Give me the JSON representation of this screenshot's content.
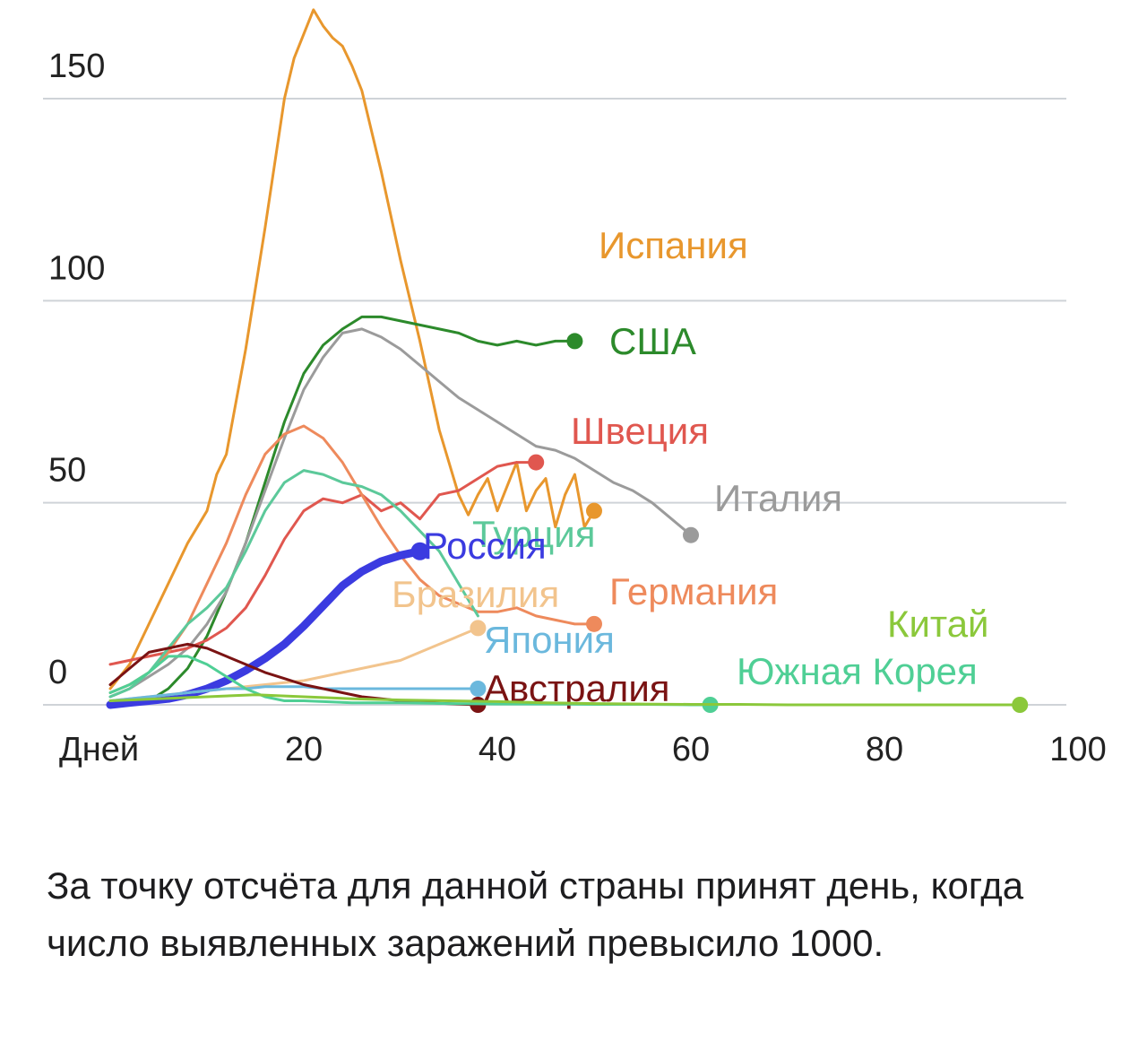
{
  "caption": "За точку отсчёта для данной страны принят день, когда число выявленных заражений превысило 1000.",
  "chart_data": {
    "type": "line",
    "title": "",
    "xlabel": "Дней",
    "ylabel": "",
    "xlim": [
      0,
      100
    ],
    "ylim": [
      0,
      170
    ],
    "x_ticks": [
      {
        "value": 0,
        "label": "Дней"
      },
      {
        "value": 20,
        "label": "20"
      },
      {
        "value": 40,
        "label": "40"
      },
      {
        "value": 60,
        "label": "60"
      },
      {
        "value": 80,
        "label": "80"
      },
      {
        "value": 100,
        "label": "100"
      }
    ],
    "y_ticks": [
      0,
      50,
      100,
      150
    ],
    "grid": "horizontal",
    "series": [
      {
        "name": "Испания",
        "color": "#e8972d",
        "width": 3,
        "x": [
          0,
          2,
          4,
          6,
          8,
          10,
          11,
          12,
          14,
          16,
          18,
          19,
          20,
          21,
          22,
          23,
          24,
          25,
          26,
          28,
          30,
          32,
          34,
          36,
          37,
          38,
          39,
          40,
          41,
          42,
          43,
          44,
          45,
          46,
          47,
          48,
          49,
          50
        ],
        "y": [
          4,
          10,
          20,
          30,
          40,
          48,
          57,
          62,
          88,
          118,
          150,
          160,
          166,
          172,
          168,
          165,
          163,
          158,
          152,
          132,
          110,
          90,
          68,
          52,
          47,
          52,
          56,
          48,
          54,
          60,
          48,
          53,
          56,
          44,
          52,
          57,
          44,
          48
        ],
        "dot": true
      },
      {
        "name": "США",
        "color": "#2c8a2b",
        "width": 3,
        "x": [
          0,
          2,
          4,
          6,
          8,
          10,
          12,
          14,
          16,
          18,
          20,
          22,
          24,
          26,
          28,
          30,
          32,
          34,
          36,
          38,
          40,
          42,
          44,
          46,
          48
        ],
        "y": [
          0,
          0,
          1,
          4,
          9,
          17,
          28,
          40,
          55,
          70,
          82,
          89,
          93,
          96,
          96,
          95,
          94,
          93,
          92,
          90,
          89,
          90,
          89,
          90,
          90
        ],
        "dot": true
      },
      {
        "name": "Италия",
        "color": "#9b9b9b",
        "width": 3,
        "x": [
          0,
          2,
          4,
          6,
          8,
          10,
          12,
          14,
          16,
          18,
          20,
          22,
          24,
          26,
          28,
          30,
          32,
          34,
          36,
          38,
          40,
          42,
          44,
          46,
          48,
          50,
          52,
          54,
          56,
          58,
          60
        ],
        "y": [
          2,
          4,
          7,
          10,
          14,
          20,
          28,
          40,
          53,
          66,
          78,
          86,
          92,
          93,
          91,
          88,
          84,
          80,
          76,
          73,
          70,
          67,
          64,
          63,
          61,
          58,
          55,
          53,
          50,
          46,
          42
        ],
        "dot": true
      },
      {
        "name": "Швеция",
        "color": "#e0574f",
        "width": 3,
        "x": [
          0,
          2,
          4,
          6,
          8,
          10,
          12,
          14,
          16,
          18,
          20,
          22,
          24,
          26,
          28,
          30,
          32,
          34,
          36,
          38,
          40,
          42,
          44
        ],
        "y": [
          10,
          11,
          12,
          13,
          14,
          16,
          19,
          24,
          32,
          41,
          48,
          51,
          50,
          52,
          48,
          50,
          46,
          52,
          53,
          56,
          59,
          60,
          60
        ],
        "dot": true
      },
      {
        "name": "Германия",
        "color": "#ee8a5c",
        "width": 3,
        "x": [
          0,
          2,
          4,
          6,
          8,
          10,
          12,
          14,
          16,
          18,
          20,
          22,
          24,
          26,
          28,
          30,
          32,
          34,
          36,
          38,
          40,
          42,
          44,
          46,
          48,
          50
        ],
        "y": [
          3,
          5,
          8,
          13,
          20,
          30,
          40,
          52,
          62,
          67,
          69,
          66,
          60,
          52,
          44,
          37,
          31,
          27,
          25,
          23,
          23,
          24,
          22,
          21,
          20,
          20
        ],
        "dot": true
      },
      {
        "name": "Турция",
        "color": "#5cc99a",
        "width": 3,
        "x": [
          0,
          2,
          4,
          6,
          8,
          10,
          12,
          14,
          16,
          18,
          20,
          22,
          24,
          26,
          28,
          30,
          32,
          34,
          36,
          38
        ],
        "y": [
          2,
          4,
          8,
          14,
          20,
          24,
          29,
          38,
          48,
          55,
          58,
          57,
          55,
          54,
          52,
          48,
          43,
          38,
          30,
          22
        ],
        "dot": false
      },
      {
        "name": "Россия",
        "color": "#3b3be0",
        "width": 9,
        "x": [
          0,
          2,
          4,
          6,
          8,
          10,
          12,
          14,
          16,
          18,
          20,
          22,
          24,
          26,
          28,
          30,
          32
        ],
        "y": [
          0,
          0.5,
          1,
          1.5,
          2.5,
          4,
          6,
          8.5,
          11.5,
          15,
          19.5,
          24.5,
          29.5,
          33,
          35.5,
          37,
          38
        ],
        "dot": true
      },
      {
        "name": "Бразилия",
        "color": "#f2c48d",
        "width": 3,
        "x": [
          0,
          2,
          4,
          6,
          8,
          10,
          12,
          14,
          16,
          18,
          20,
          22,
          24,
          26,
          28,
          30,
          32,
          34,
          36,
          38
        ],
        "y": [
          1,
          1.5,
          2,
          2.5,
          3,
          3.5,
          4,
          4.5,
          5,
          5.5,
          6,
          7,
          8,
          9,
          10,
          11,
          13,
          15,
          17,
          19
        ],
        "dot": true
      },
      {
        "name": "Япония",
        "color": "#6bb8dd",
        "width": 3,
        "x": [
          0,
          2,
          4,
          6,
          8,
          10,
          12,
          14,
          16,
          18,
          20,
          22,
          24,
          26,
          28,
          30,
          32,
          34,
          36,
          38
        ],
        "y": [
          1,
          1.5,
          2,
          2.5,
          3,
          3.5,
          4,
          4,
          4.5,
          4.5,
          4.5,
          4,
          4,
          4,
          4,
          4,
          4,
          4,
          4,
          4
        ],
        "dot": true
      },
      {
        "name": "Австралия",
        "color": "#7a1313",
        "width": 3,
        "x": [
          0,
          2,
          4,
          6,
          8,
          10,
          12,
          14,
          16,
          18,
          20,
          22,
          24,
          26,
          28,
          30,
          32,
          34,
          36,
          38
        ],
        "y": [
          5,
          9,
          13,
          14,
          15,
          14,
          12,
          10,
          8,
          6.5,
          5,
          4,
          3,
          2,
          1.5,
          1,
          0.6,
          0.4,
          0.2,
          0
        ],
        "dot": true
      },
      {
        "name": "Южная Корея",
        "color": "#4fcf95",
        "width": 3,
        "x": [
          0,
          2,
          4,
          6,
          8,
          10,
          12,
          14,
          16,
          18,
          20,
          25,
          30,
          35,
          40,
          45,
          50,
          55,
          60,
          62
        ],
        "y": [
          3,
          5,
          8,
          12,
          12,
          10,
          7,
          4,
          2,
          1,
          1,
          0.5,
          0.5,
          0.3,
          0.2,
          0.2,
          0.1,
          0.1,
          0,
          0
        ],
        "dot": true
      },
      {
        "name": "Китай",
        "color": "#8bc83b",
        "width": 3,
        "x": [
          0,
          5,
          10,
          15,
          20,
          25,
          30,
          35,
          40,
          45,
          50,
          55,
          60,
          65,
          70,
          75,
          80,
          85,
          90,
          94
        ],
        "y": [
          1,
          1.5,
          2,
          2.5,
          2,
          1.5,
          1.2,
          1,
          0.8,
          0.5,
          0.3,
          0.2,
          0.1,
          0.1,
          0,
          0,
          0,
          0,
          0,
          0
        ],
        "dot": true
      }
    ]
  }
}
